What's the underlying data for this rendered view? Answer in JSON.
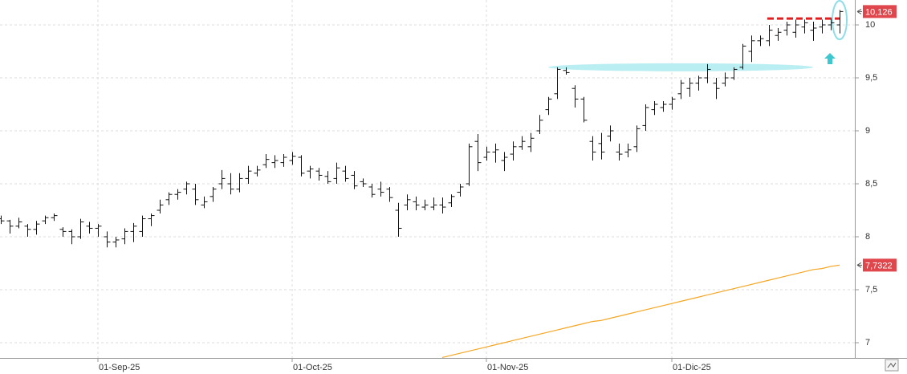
{
  "chart_data": {
    "type": "ohlc",
    "categories": [
      null,
      null,
      null,
      null,
      null,
      null,
      null,
      null,
      null,
      null,
      null,
      "01-Sep-25",
      null,
      null,
      null,
      null,
      null,
      null,
      null,
      null,
      null,
      null,
      null,
      null,
      null,
      null,
      null,
      null,
      null,
      null,
      null,
      null,
      null,
      "01-Oct-25",
      null,
      null,
      null,
      null,
      null,
      null,
      null,
      null,
      null,
      null,
      null,
      null,
      null,
      null,
      null,
      null,
      null,
      null,
      null,
      null,
      null,
      "01-Nov-25",
      null,
      null,
      null,
      null,
      null,
      null,
      null,
      null,
      null,
      null,
      null,
      null,
      null,
      null,
      null,
      null,
      null,
      null,
      null,
      null,
      "01-Dic-25",
      null,
      null,
      null,
      null,
      null,
      null,
      null,
      null,
      null,
      null,
      null,
      null,
      null,
      null,
      null,
      null,
      null,
      null,
      null
    ],
    "open": [
      8.17,
      8.15,
      8.1,
      8.1,
      8.07,
      8.15,
      8.18,
      8.07,
      8.05,
      8.0,
      8.1,
      8.08,
      8.0,
      7.95,
      7.98,
      8.05,
      8.05,
      8.17,
      8.25,
      8.35,
      8.4,
      8.45,
      8.45,
      8.3,
      8.38,
      8.5,
      8.5,
      8.45,
      8.55,
      8.6,
      8.68,
      8.7,
      8.7,
      8.72,
      8.75,
      8.62,
      8.62,
      8.57,
      8.55,
      8.62,
      8.58,
      8.52,
      8.47,
      8.45,
      8.45,
      8.25,
      8.3,
      8.33,
      8.28,
      8.28,
      8.3,
      8.32,
      8.42,
      8.5,
      8.9,
      8.75,
      8.8,
      8.72,
      8.78,
      8.85,
      8.85,
      9.0,
      9.2,
      9.35,
      9.57,
      9.4,
      9.3,
      8.9,
      8.88,
      8.95,
      8.8,
      8.8,
      8.85,
      9.05,
      9.2,
      9.22,
      9.25,
      9.35,
      9.4,
      9.45,
      9.5,
      9.45,
      9.45,
      9.5,
      9.6,
      9.75,
      9.85,
      9.85,
      9.9,
      9.95,
      9.93,
      9.98,
      9.95,
      9.98,
      10.0,
      10.0
    ],
    "high": [
      8.2,
      8.16,
      8.18,
      8.12,
      8.15,
      8.2,
      8.22,
      8.09,
      8.07,
      8.17,
      8.14,
      8.12,
      8.05,
      8.0,
      8.08,
      8.13,
      8.2,
      8.22,
      8.35,
      8.42,
      8.45,
      8.52,
      8.5,
      8.38,
      8.47,
      8.63,
      8.6,
      8.6,
      8.67,
      8.67,
      8.78,
      8.77,
      8.78,
      8.8,
      8.77,
      8.67,
      8.65,
      8.62,
      8.7,
      8.67,
      8.62,
      8.55,
      8.5,
      8.52,
      8.47,
      8.32,
      8.4,
      8.38,
      8.35,
      8.37,
      8.37,
      8.4,
      8.5,
      8.88,
      8.97,
      8.85,
      8.88,
      8.8,
      8.9,
      8.95,
      8.98,
      9.15,
      9.32,
      9.6,
      9.6,
      9.43,
      9.32,
      8.95,
      8.98,
      9.05,
      8.88,
      8.88,
      9.05,
      9.25,
      9.28,
      9.28,
      9.32,
      9.48,
      9.5,
      9.52,
      9.63,
      9.5,
      9.55,
      9.6,
      9.82,
      9.9,
      9.9,
      10.0,
      9.97,
      10.03,
      10.05,
      10.05,
      10.03,
      10.05,
      10.06,
      10.14
    ],
    "low": [
      8.12,
      8.03,
      8.08,
      8.0,
      8.02,
      8.12,
      8.15,
      8.0,
      7.93,
      7.98,
      8.03,
      8.0,
      7.9,
      7.9,
      7.93,
      7.95,
      8.0,
      8.1,
      8.22,
      8.3,
      8.35,
      8.4,
      8.3,
      8.27,
      8.33,
      8.45,
      8.4,
      8.42,
      8.5,
      8.57,
      8.65,
      8.65,
      8.66,
      8.68,
      8.57,
      8.55,
      8.53,
      8.5,
      8.5,
      8.52,
      8.45,
      8.47,
      8.37,
      8.38,
      8.33,
      8.0,
      8.25,
      8.25,
      8.25,
      8.25,
      8.22,
      8.28,
      8.38,
      8.48,
      8.62,
      8.72,
      8.7,
      8.62,
      8.72,
      8.82,
      8.8,
      8.97,
      9.15,
      9.3,
      9.53,
      9.22,
      9.08,
      8.72,
      8.73,
      8.9,
      8.72,
      8.75,
      8.8,
      9.0,
      9.15,
      9.18,
      9.2,
      9.3,
      9.32,
      9.38,
      9.45,
      9.3,
      9.42,
      9.48,
      9.58,
      9.65,
      9.8,
      9.8,
      9.85,
      9.9,
      9.88,
      9.92,
      9.85,
      9.92,
      9.95,
      9.92
    ],
    "close": [
      8.15,
      8.1,
      8.14,
      8.07,
      8.12,
      8.18,
      8.2,
      8.05,
      8.0,
      8.14,
      8.08,
      8.1,
      7.95,
      7.97,
      8.05,
      8.1,
      8.17,
      8.2,
      8.3,
      8.4,
      8.42,
      8.5,
      8.35,
      8.33,
      8.45,
      8.55,
      8.45,
      8.55,
      8.62,
      8.63,
      8.73,
      8.72,
      8.75,
      8.76,
      8.6,
      8.64,
      8.58,
      8.52,
      8.65,
      8.55,
      8.48,
      8.5,
      8.4,
      8.42,
      8.37,
      8.08,
      8.35,
      8.3,
      8.3,
      8.3,
      8.28,
      8.38,
      8.47,
      8.85,
      8.7,
      8.8,
      8.82,
      8.75,
      8.85,
      8.9,
      8.93,
      9.1,
      9.3,
      9.58,
      9.55,
      9.3,
      9.1,
      8.8,
      8.8,
      9.0,
      8.78,
      8.82,
      9.02,
      9.22,
      9.25,
      9.25,
      9.3,
      9.45,
      9.45,
      9.5,
      9.58,
      9.4,
      9.5,
      9.58,
      9.8,
      9.85,
      9.87,
      9.95,
      9.93,
      10.0,
      10.0,
      10.02,
      9.97,
      10.0,
      10.02,
      10.126
    ],
    "bar_color": "#111111",
    "moving_average": {
      "color": "#f5a623",
      "values": [
        null,
        null,
        null,
        null,
        null,
        null,
        null,
        null,
        null,
        null,
        null,
        null,
        null,
        null,
        null,
        null,
        null,
        null,
        null,
        null,
        null,
        null,
        null,
        null,
        null,
        null,
        null,
        null,
        null,
        null,
        null,
        null,
        null,
        null,
        null,
        null,
        null,
        null,
        null,
        null,
        null,
        null,
        null,
        null,
        null,
        null,
        null,
        null,
        null,
        null,
        6.86,
        6.88,
        6.9,
        6.92,
        6.94,
        6.96,
        6.98,
        7.0,
        7.02,
        7.04,
        7.06,
        7.08,
        7.1,
        7.12,
        7.14,
        7.16,
        7.18,
        7.2,
        7.21,
        7.23,
        7.25,
        7.27,
        7.29,
        7.31,
        7.33,
        7.35,
        7.37,
        7.39,
        7.41,
        7.43,
        7.45,
        7.47,
        7.49,
        7.51,
        7.53,
        7.55,
        7.57,
        7.59,
        7.61,
        7.63,
        7.65,
        7.67,
        7.69,
        7.7,
        7.72,
        7.7322
      ]
    },
    "last_labels": [
      {
        "value": 10.126,
        "label": "10,126"
      },
      {
        "value": 7.7322,
        "label": "7,7322"
      }
    ],
    "last_label_color": "#e0474c",
    "ylim": [
      6.856,
      10.235
    ],
    "yticks": [
      10,
      {
        "value": 9.5,
        "label": "9,5"
      },
      9,
      {
        "value": 8.5,
        "label": "8,5"
      },
      8,
      {
        "value": 7.5,
        "label": "7,5"
      },
      7
    ],
    "grid": true,
    "annotations": [
      {
        "kind": "dashed-line",
        "value": 10.06,
        "color": "#e02020"
      },
      {
        "kind": "band",
        "value": 9.6,
        "color": "#b9eef3"
      }
    ]
  }
}
